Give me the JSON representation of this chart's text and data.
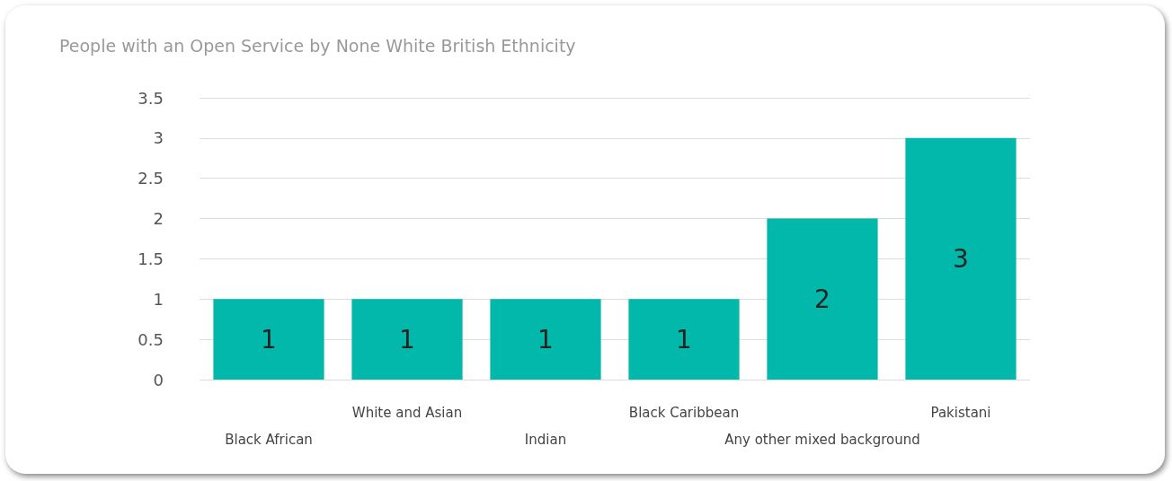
{
  "chart_data": {
    "type": "bar",
    "title": "People with an Open Service by None White British Ethnicity",
    "categories": [
      "Black African",
      "White and Asian",
      "Indian",
      "Black Caribbean",
      "Any other mixed background",
      "Pakistani"
    ],
    "values": [
      1,
      1,
      1,
      1,
      2,
      3
    ],
    "color": "#01b8aa",
    "ylim": [
      0,
      3.5
    ],
    "yticks": [
      0,
      0.5,
      1,
      1.5,
      2,
      2.5,
      3,
      3.5
    ],
    "grid": "y",
    "data_labels": true
  }
}
